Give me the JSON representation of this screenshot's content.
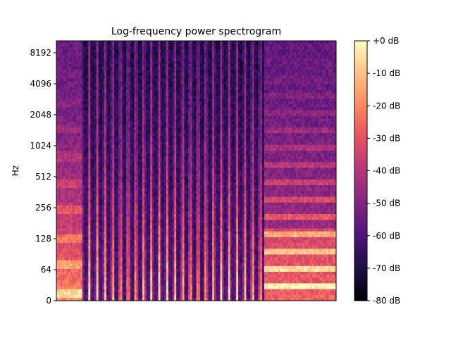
{
  "chart_data": {
    "type": "heatmap",
    "title": "Log-frequency power spectrogram",
    "xlabel": "",
    "ylabel": "Hz",
    "y_scale": "log2",
    "y_ticks": [
      "0",
      "64",
      "128",
      "256",
      "512",
      "1024",
      "2048",
      "4096",
      "8192"
    ],
    "x_ticks": [],
    "colormap": "magma",
    "colorbar": {
      "range": [
        -80,
        0
      ],
      "ticks": [
        "+0 dB",
        "-10 dB",
        "-20 dB",
        "-30 dB",
        "-40 dB",
        "-50 dB",
        "-60 dB",
        "-70 dB",
        "-80 dB"
      ]
    },
    "segments": [
      {
        "description": "sustained tone",
        "x_range": [
          0,
          0.09
        ]
      },
      {
        "description": "percussive pulses",
        "x_range": [
          0.09,
          0.74
        ]
      },
      {
        "description": "sustained harmonic tones",
        "x_range": [
          0.74,
          1.0
        ]
      }
    ]
  }
}
